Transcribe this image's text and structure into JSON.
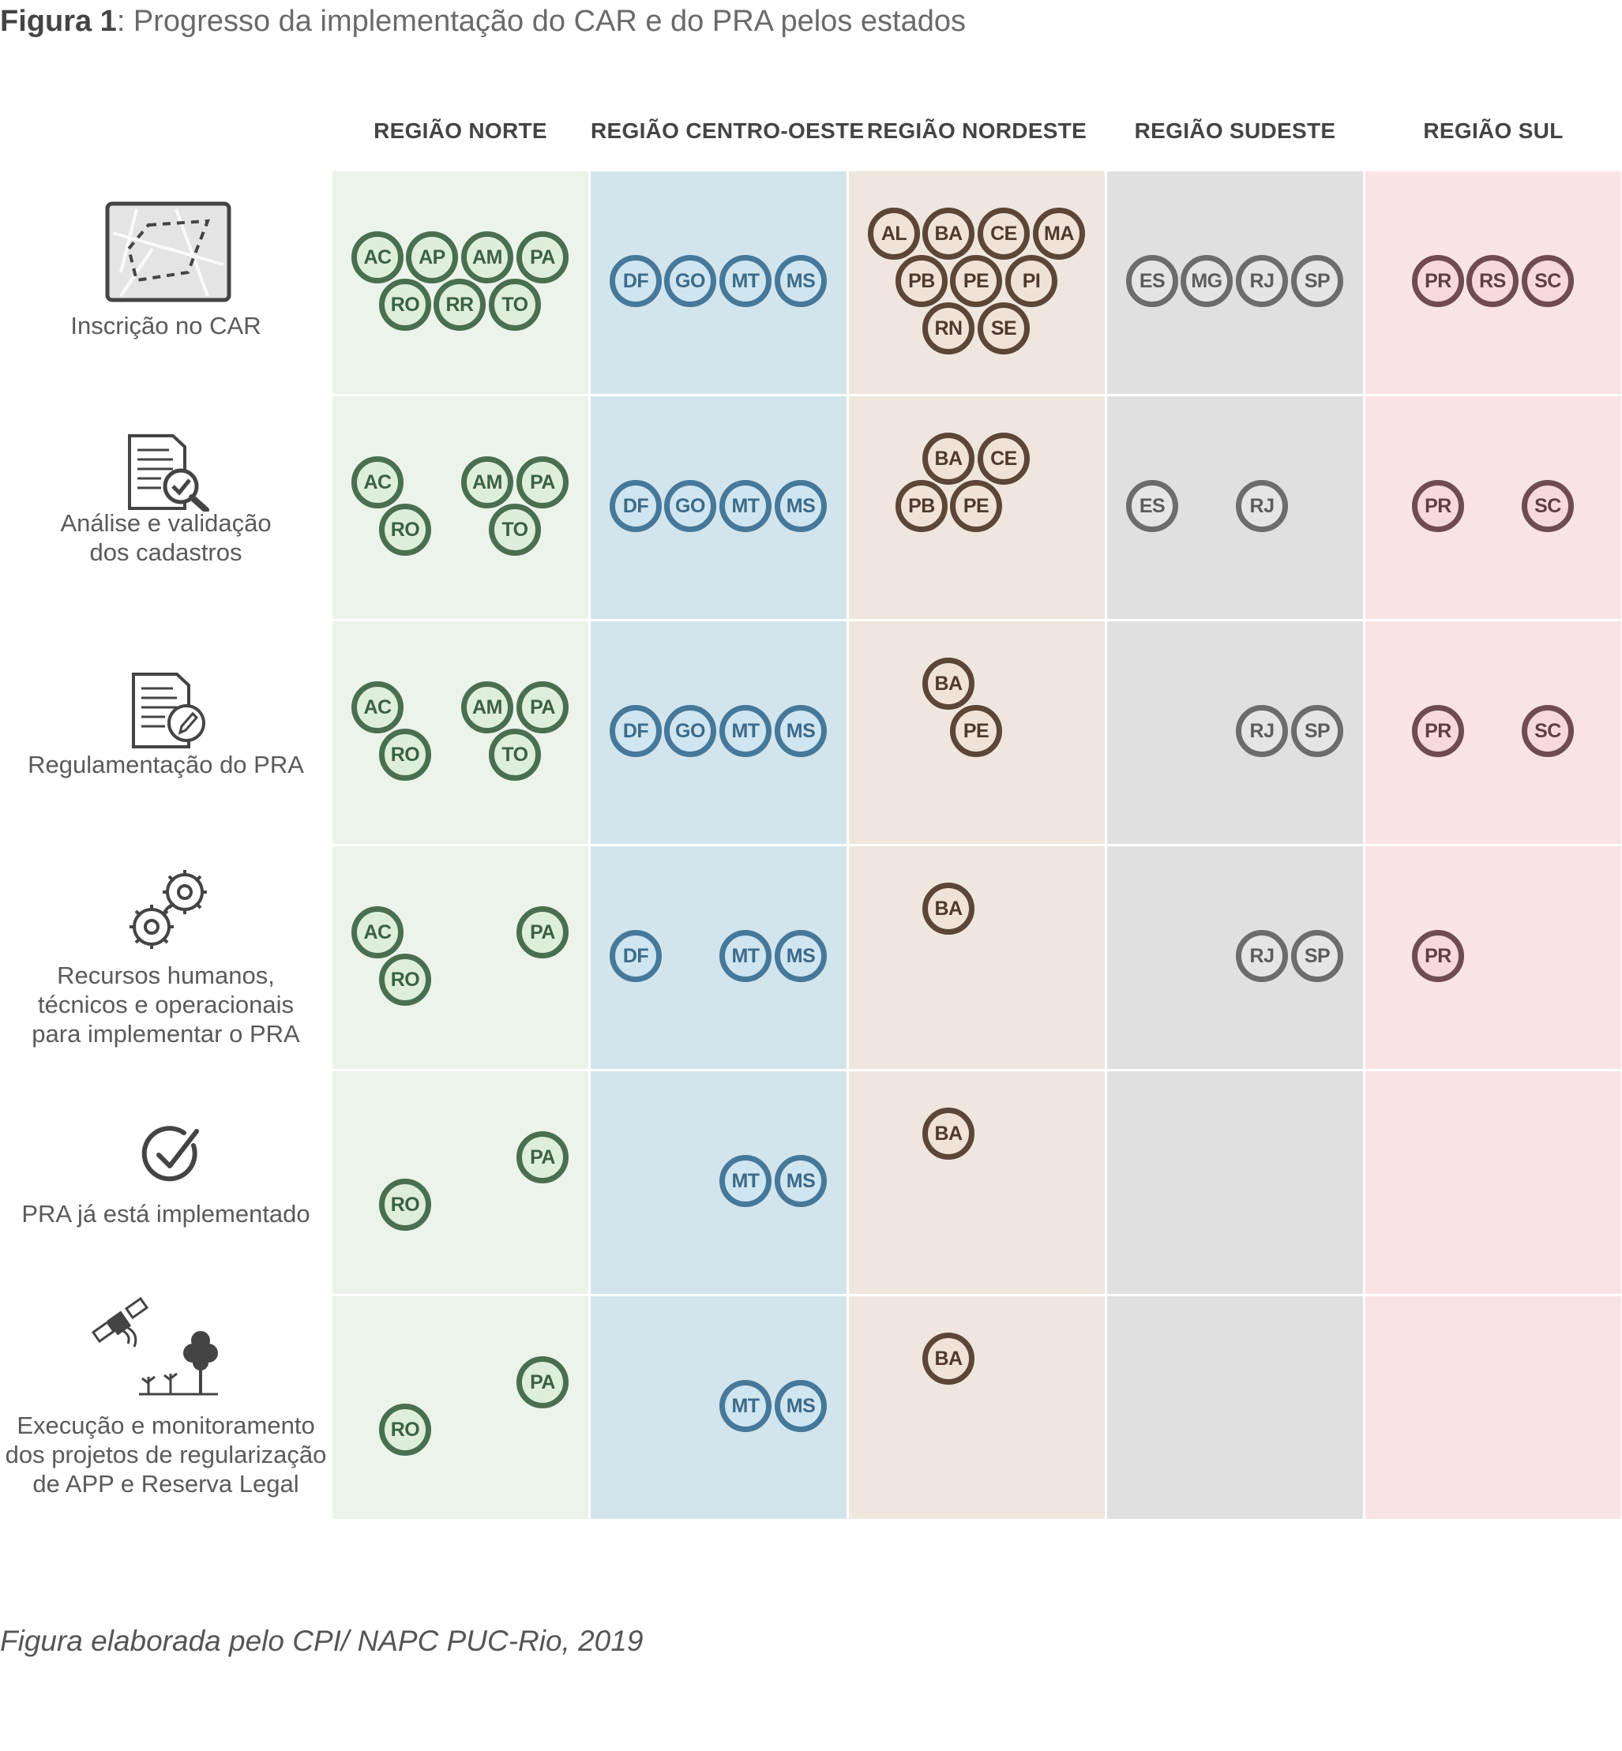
{
  "title": {
    "prefix": "Figura 1",
    "rest": ": Progresso da implementação do CAR e do PRA pelos estados"
  },
  "regions": [
    {
      "name": "REGIÃO NORTE",
      "bg": "#ebf3ea",
      "ring": "#4a6f50",
      "fill": "#ddeeda",
      "text": "#3d6044"
    },
    {
      "name": "REGIÃO CENTRO-OESTE",
      "bg": "#d3e5ec",
      "ring": "#46789a",
      "fill": "#cfe5f0",
      "text": "#3c6a8a"
    },
    {
      "name": "REGIÃO NORDESTE",
      "bg": "#efe6dd",
      "ring": "#5b4638",
      "fill": "#f0e2d6",
      "text": "#4e3a2d"
    },
    {
      "name": "REGIÃO SUDESTE",
      "bg": "#e0e0e0",
      "ring": "#6c6c6c",
      "fill": "#e5e5e5",
      "text": "#5c5c5c"
    },
    {
      "name": "REGIÃO SUL",
      "bg": "#fae3e5",
      "ring": "#6e4c52",
      "fill": "#f7d9dc",
      "text": "#5e3d43"
    }
  ],
  "rows": [
    {
      "label_lines": [
        "Inscrição no CAR"
      ],
      "icon": "map-icon",
      "states": [
        [
          "AC",
          "AP",
          "AM",
          "PA",
          "RO",
          "RR",
          "TO"
        ],
        [
          "DF",
          "GO",
          "MT",
          "MS"
        ],
        [
          "AL",
          "BA",
          "CE",
          "MA",
          "PB",
          "PE",
          "PI",
          "RN",
          "SE"
        ],
        [
          "ES",
          "MG",
          "RJ",
          "SP"
        ],
        [
          "PR",
          "RS",
          "SC"
        ]
      ]
    },
    {
      "label_lines": [
        "Análise e validação",
        "dos cadastros"
      ],
      "icon": "document-check-icon",
      "states": [
        [
          "AC",
          "AM",
          "PA",
          "RO",
          "TO"
        ],
        [
          "DF",
          "GO",
          "MT",
          "MS"
        ],
        [
          "BA",
          "CE",
          "PB",
          "PE"
        ],
        [
          "ES",
          "RJ"
        ],
        [
          "PR",
          "SC"
        ]
      ]
    },
    {
      "label_lines": [
        "Regulamentação do PRA"
      ],
      "icon": "document-edit-icon",
      "states": [
        [
          "AC",
          "AM",
          "PA",
          "RO",
          "TO"
        ],
        [
          "DF",
          "GO",
          "MT",
          "MS"
        ],
        [
          "BA",
          "PE"
        ],
        [
          "RJ",
          "SP"
        ],
        [
          "PR",
          "SC"
        ]
      ]
    },
    {
      "label_lines": [
        "Recursos humanos,",
        "técnicos e operacionais",
        "para implementar o PRA"
      ],
      "icon": "gears-icon",
      "states": [
        [
          "AC",
          "PA",
          "RO"
        ],
        [
          "DF",
          "MT",
          "MS"
        ],
        [
          "BA"
        ],
        [
          "RJ",
          "SP"
        ],
        [
          "PR"
        ]
      ]
    },
    {
      "label_lines": [
        "PRA já está implementado"
      ],
      "icon": "checkmark-circle-icon",
      "states": [
        [
          "PA",
          "RO"
        ],
        [
          "MT",
          "MS"
        ],
        [
          "BA"
        ],
        [],
        []
      ]
    },
    {
      "label_lines": [
        "Execução e monitoramento",
        "dos projetos de regularização",
        "de APP e Reserva Legal"
      ],
      "icon": "satellite-vegetation-icon",
      "states": [
        [
          "PA",
          "RO"
        ],
        [
          "MT",
          "MS"
        ],
        [
          "BA"
        ],
        [],
        []
      ]
    }
  ],
  "footnote": "Figura elaborada pelo CPI/ NAPC PUC-Rio, 2019"
}
